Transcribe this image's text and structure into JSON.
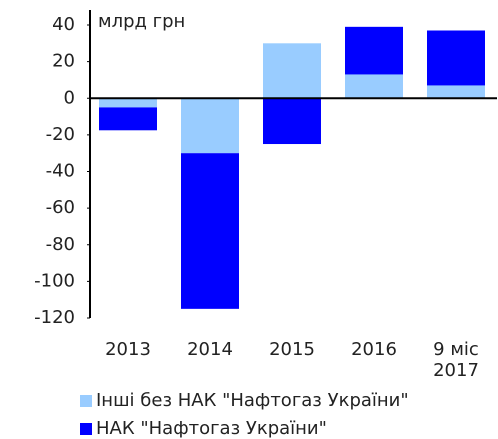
{
  "chart_data": {
    "type": "stacked-bar",
    "annotation": "млрд грн",
    "categories": [
      "2013",
      "2014",
      "2015",
      "2016",
      "9 міс\n2017"
    ],
    "series": [
      {
        "name": "Інші без НАК \"Нафтогаз України\"",
        "color": "#99ccff",
        "values": [
          -5,
          -30,
          30,
          13,
          7
        ]
      },
      {
        "name": "НАК \"Нафтогаз України\"",
        "color": "#0000ff",
        "values": [
          -12.5,
          -85,
          -25,
          26,
          30
        ]
      }
    ],
    "ylim": [
      -120,
      40
    ],
    "yticks": [
      40,
      20,
      0,
      -20,
      -40,
      -60,
      -80,
      -100,
      -120
    ]
  }
}
